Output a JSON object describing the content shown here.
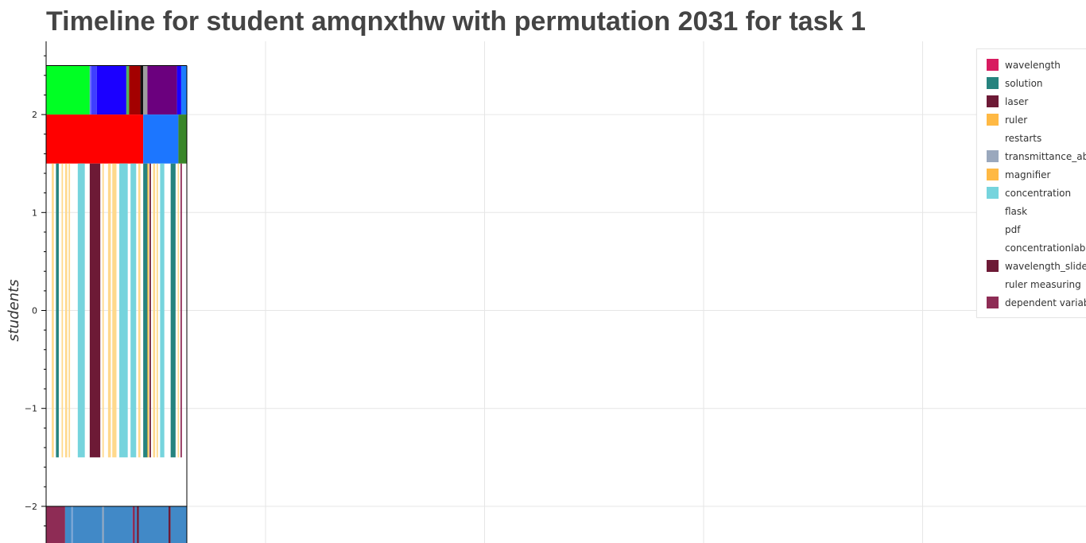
{
  "title": "Timeline for student amqnxthw with permutation 2031 for task 1",
  "chart_data": {
    "type": "bar",
    "title": "Timeline for student amqnxthw with permutation 2031 for task 1",
    "ylabel": "students",
    "xlabel": "",
    "ylim": [
      -2.4,
      2.75
    ],
    "y_ticks": [
      2,
      1,
      0,
      -1,
      -2
    ],
    "y_tick_labels": [
      "2",
      "1",
      "0",
      "−1",
      "−2"
    ],
    "x_range": [
      0,
      1
    ],
    "grid": true,
    "legend_position": "top-right",
    "legend": [
      {
        "label": "wavelength",
        "color": "#d81b60"
      },
      {
        "label": "solution",
        "color": "#26837e"
      },
      {
        "label": "laser",
        "color": "#6d1a36"
      },
      {
        "label": "ruler",
        "color": "#ffb944"
      },
      {
        "label": "restarts",
        "color": ""
      },
      {
        "label": "transmittance_abs",
        "color": "#9aa8bd"
      },
      {
        "label": "magnifier",
        "color": "#ffb944"
      },
      {
        "label": "concentration",
        "color": "#76d4dd"
      },
      {
        "label": "flask",
        "color": ""
      },
      {
        "label": "pdf",
        "color": ""
      },
      {
        "label": "concentrationlab",
        "color": ""
      },
      {
        "label": "wavelength_slider",
        "color": "#6d1a36"
      },
      {
        "label": "ruler measuring",
        "color": ""
      },
      {
        "label": "dependent variable",
        "color": "#8e2c55"
      }
    ],
    "rows": [
      {
        "y": [
          2.0,
          2.5
        ],
        "segments": [
          {
            "start": 0.0,
            "end": 0.31,
            "color": "#00ff24"
          },
          {
            "start": 0.31,
            "end": 0.32,
            "color": "#6f6fff"
          },
          {
            "start": 0.32,
            "end": 0.36,
            "color": "#3f3fff"
          },
          {
            "start": 0.36,
            "end": 0.57,
            "color": "#1b00ff"
          },
          {
            "start": 0.57,
            "end": 0.59,
            "color": "#54b25c"
          },
          {
            "start": 0.59,
            "end": 0.67,
            "color": "#a30000"
          },
          {
            "start": 0.67,
            "end": 0.69,
            "color": "#111111"
          },
          {
            "start": 0.69,
            "end": 0.72,
            "color": "#9e9e9e"
          },
          {
            "start": 0.72,
            "end": 0.93,
            "color": "#6b007e"
          },
          {
            "start": 0.93,
            "end": 0.96,
            "color": "#1b00ff"
          },
          {
            "start": 0.96,
            "end": 1.0,
            "color": "#1d7dfc"
          }
        ]
      },
      {
        "y": [
          1.5,
          2.0
        ],
        "segments": [
          {
            "start": 0.0,
            "end": 0.69,
            "color": "#ff0000"
          },
          {
            "start": 0.69,
            "end": 0.94,
            "color": "#1c76ff"
          },
          {
            "start": 0.94,
            "end": 1.0,
            "color": "#398629"
          }
        ]
      },
      {
        "y": [
          -1.5,
          1.5
        ],
        "segments": [
          {
            "start": 0.04,
            "end": 0.055,
            "color": "#ffd98c"
          },
          {
            "start": 0.07,
            "end": 0.09,
            "color": "#26837e"
          },
          {
            "start": 0.11,
            "end": 0.12,
            "color": "#ffd98c"
          },
          {
            "start": 0.135,
            "end": 0.15,
            "color": "#ffd98c"
          },
          {
            "start": 0.16,
            "end": 0.17,
            "color": "#ffd98c"
          },
          {
            "start": 0.225,
            "end": 0.275,
            "color": "#76d4dd"
          },
          {
            "start": 0.31,
            "end": 0.385,
            "color": "#6d1a36"
          },
          {
            "start": 0.4,
            "end": 0.41,
            "color": "#ffd98c"
          },
          {
            "start": 0.44,
            "end": 0.46,
            "color": "#ffd98c"
          },
          {
            "start": 0.47,
            "end": 0.5,
            "color": "#ffd98c"
          },
          {
            "start": 0.52,
            "end": 0.58,
            "color": "#76d4dd"
          },
          {
            "start": 0.6,
            "end": 0.64,
            "color": "#76d4dd"
          },
          {
            "start": 0.655,
            "end": 0.67,
            "color": "#ffd98c"
          },
          {
            "start": 0.69,
            "end": 0.72,
            "color": "#26837e"
          },
          {
            "start": 0.72,
            "end": 0.73,
            "color": "#ffb944"
          },
          {
            "start": 0.735,
            "end": 0.745,
            "color": "#6d1a36"
          },
          {
            "start": 0.76,
            "end": 0.775,
            "color": "#ffd98c"
          },
          {
            "start": 0.785,
            "end": 0.795,
            "color": "#ffd98c"
          },
          {
            "start": 0.81,
            "end": 0.84,
            "color": "#76d4dd"
          },
          {
            "start": 0.885,
            "end": 0.92,
            "color": "#26837e"
          },
          {
            "start": 0.935,
            "end": 0.945,
            "color": "#ffd98c"
          },
          {
            "start": 0.955,
            "end": 0.965,
            "color": "#8e2c55"
          }
        ]
      },
      {
        "y": [
          -2.5,
          -2.0
        ],
        "segments": [
          {
            "start": 0.0,
            "end": 0.135,
            "color": "#8e2c55"
          },
          {
            "start": 0.135,
            "end": 0.18,
            "color": "#4189c7"
          },
          {
            "start": 0.18,
            "end": 0.19,
            "color": "#7fa7d6"
          },
          {
            "start": 0.19,
            "end": 0.4,
            "color": "#4189c7"
          },
          {
            "start": 0.4,
            "end": 0.41,
            "color": "#9aa8bd"
          },
          {
            "start": 0.41,
            "end": 0.615,
            "color": "#4189c7"
          },
          {
            "start": 0.615,
            "end": 0.63,
            "color": "#8e2c55"
          },
          {
            "start": 0.63,
            "end": 0.645,
            "color": "#4189c7"
          },
          {
            "start": 0.645,
            "end": 0.66,
            "color": "#6d1a36"
          },
          {
            "start": 0.66,
            "end": 0.87,
            "color": "#4189c7"
          },
          {
            "start": 0.87,
            "end": 0.885,
            "color": "#6d1a36"
          },
          {
            "start": 0.885,
            "end": 1.0,
            "color": "#4189c7"
          }
        ]
      }
    ]
  }
}
